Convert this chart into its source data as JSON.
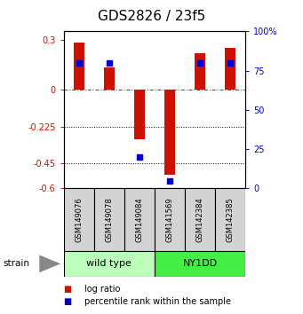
{
  "title": "GDS2826 / 23f5",
  "samples": [
    "GSM149076",
    "GSM149078",
    "GSM149084",
    "GSM141569",
    "GSM142384",
    "GSM142385"
  ],
  "log_ratios": [
    0.28,
    0.13,
    -0.3,
    -0.52,
    0.22,
    0.25
  ],
  "percentile_ranks": [
    80,
    80,
    20,
    5,
    80,
    80
  ],
  "groups": [
    "wild type",
    "wild type",
    "wild type",
    "NY1DD",
    "NY1DD",
    "NY1DD"
  ],
  "group_labels": [
    "wild type",
    "NY1DD"
  ],
  "group_colors": [
    "#bbffbb",
    "#44ee44"
  ],
  "group_boundary": 3,
  "bar_color": "#cc1100",
  "pct_color": "#0000cc",
  "ylim_left": [
    -0.6,
    0.35
  ],
  "ylim_right": [
    0,
    100
  ],
  "left_yticks": [
    0.3,
    0,
    -0.225,
    -0.45,
    -0.6
  ],
  "left_ytick_labels": [
    "0.3",
    "0",
    "-0.225",
    "-0.45",
    "-0.6"
  ],
  "right_yticks": [
    100,
    75,
    50,
    25,
    0
  ],
  "right_ytick_labels": [
    "100%",
    "75",
    "50",
    "25",
    "0"
  ],
  "hline_y": 0,
  "dotted_lines": [
    -0.225,
    -0.45
  ],
  "bar_width": 0.35,
  "pct_marker_size": 4,
  "strain_label": "strain",
  "legend_log_ratio": "log ratio",
  "legend_pct_rank": "percentile rank within the sample",
  "background_color": "#ffffff",
  "plot_bg_color": "#ffffff",
  "left_tick_color": "#cc1100",
  "right_tick_color": "#0000cc",
  "title_fontsize": 11,
  "tick_fontsize": 7,
  "label_fontsize": 7.5,
  "group_fontsize": 8,
  "sample_fontsize": 6
}
